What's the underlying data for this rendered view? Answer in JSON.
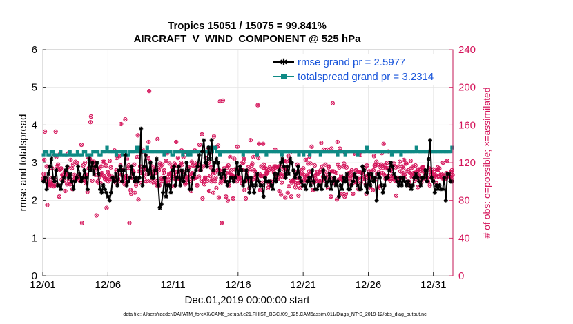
{
  "chart_data": {
    "type": "line",
    "title_line1": "Tropics 15051 / 15075 = 99.841%",
    "title_line2": "AIRCRAFT_V_WIND_COMPONENT @ 525 hPa",
    "xlabel": "Dec.01,2019 00:00:00 start",
    "ylabel": "rmse and totalspread",
    "ylabel_right": "# of obs: o=possible; ×=assimilated",
    "xlim": [
      0,
      31.5
    ],
    "ylim": [
      0,
      6
    ],
    "ylim_right": [
      0,
      240
    ],
    "x_ticks": [
      0,
      5,
      10,
      15,
      20,
      25,
      30
    ],
    "x_tick_labels": [
      "12/01",
      "12/06",
      "12/11",
      "12/16",
      "12/21",
      "12/26",
      "12/31"
    ],
    "y_ticks": [
      0,
      1,
      2,
      3,
      4,
      5,
      6
    ],
    "y_tick_labels": [
      "0",
      "1",
      "2",
      "3",
      "4",
      "5",
      "6"
    ],
    "y_ticks_right": [
      0,
      40,
      80,
      120,
      160,
      200,
      240
    ],
    "y_tick_labels_right": [
      "0",
      "40",
      "80",
      "120",
      "160",
      "200",
      "240"
    ],
    "colors": {
      "rmse": "#000000",
      "spread": "#0f8a85",
      "obs": "#d4145a"
    },
    "series": [
      {
        "name": "rmse grand pr = 2.5977",
        "key": "rmse",
        "values": [
          2.5,
          2.6,
          2.3,
          2.7,
          2.9,
          3.1,
          2.6,
          2.5,
          2.8,
          2.4,
          2.4,
          2.3,
          2.5,
          2.6,
          2.8,
          2.9,
          2.6,
          2.7,
          2.5,
          2.3,
          2.5,
          2.6,
          2.9,
          2.7,
          2.5,
          2.6,
          2.8,
          2.6,
          2.3,
          3.1,
          2.8,
          3.0,
          2.7,
          2.9,
          3.0,
          2.7,
          2.3,
          2.2,
          2.4,
          2.3,
          2.2,
          2.1,
          2.0,
          2.2,
          2.6,
          2.5,
          2.7,
          2.4,
          2.8,
          2.9,
          2.5,
          2.8,
          3.2,
          2.4,
          2.5,
          2.6,
          2.9,
          2.7,
          2.5,
          2.6,
          2.5,
          2.6,
          3.9,
          2.4,
          2.9,
          3.2,
          2.8,
          2.7,
          3.0,
          2.6,
          2.6,
          2.8,
          3.1,
          2.4,
          1.8,
          1.9,
          2.2,
          2.6,
          2.1,
          2.4,
          2.4,
          2.2,
          2.8,
          2.9,
          2.4,
          2.6,
          2.9,
          2.4,
          2.8,
          2.5,
          2.7,
          3.0,
          2.8,
          2.3,
          2.3,
          2.6,
          2.7,
          2.8,
          2.9,
          3.2,
          2.8,
          3.3,
          3.6,
          3.0,
          2.9,
          3.4,
          3.1,
          3.6,
          2.8,
          3.0,
          3.1,
          3.0,
          2.7,
          2.6,
          2.7,
          2.8,
          2.5,
          2.4,
          2.5,
          2.6,
          2.6,
          2.5,
          2.6,
          3.0,
          2.7,
          2.9,
          2.8,
          2.4,
          2.5,
          2.8,
          2.6,
          2.2,
          2.6,
          2.4,
          2.2,
          2.4,
          2.7,
          2.5,
          2.4,
          2.4,
          2.1,
          2.6,
          2.5,
          2.5,
          2.5,
          2.4,
          2.3,
          2.7,
          2.5,
          2.7,
          2.8,
          3.0,
          3.1,
          2.9,
          2.6,
          2.9,
          2.7,
          3.1,
          3.0,
          2.8,
          2.6,
          2.7,
          2.9,
          2.6,
          2.5,
          2.4,
          2.4,
          2.3,
          2.5,
          2.6,
          2.4,
          2.8,
          2.5,
          2.3,
          2.3,
          2.4,
          2.4,
          2.3,
          2.8,
          2.6,
          2.4,
          2.5,
          2.7,
          2.3,
          2.5,
          2.6,
          2.4,
          2.5,
          2.1,
          2.4,
          2.3,
          2.6,
          2.5,
          2.7,
          2.3,
          2.3,
          2.4,
          2.5,
          2.7,
          2.6,
          2.4,
          2.3,
          2.3,
          2.9,
          2.8,
          2.4,
          2.2,
          2.7,
          2.4,
          2.7,
          2.5,
          2.6,
          2.0,
          2.7,
          2.6,
          2.4,
          2.2,
          2.4,
          2.6,
          2.6,
          2.8,
          3.0,
          2.9,
          2.7,
          2.6,
          2.5,
          2.4,
          2.6,
          2.4,
          2.6,
          2.5,
          2.4,
          2.5,
          2.4,
          2.3,
          2.4,
          2.6,
          2.7,
          2.6,
          2.5,
          2.4,
          2.6,
          2.6,
          2.8,
          2.5,
          3.1,
          3.6,
          2.6,
          2.5,
          2.2,
          2.4,
          2.3,
          2.4,
          2.3,
          2.3,
          2.6,
          2.0,
          2.7,
          2.7,
          2.5,
          2.5
        ]
      },
      {
        "name": "totalspread grand pr = 3.2314",
        "key": "spread",
        "values": [
          3.2,
          3.3,
          3.3,
          3.2,
          3.2,
          3.3,
          3.3,
          3.2,
          3.2,
          3.2,
          3.2,
          3.3,
          3.2,
          3.2,
          3.2,
          3.2,
          3.2,
          3.3,
          3.2,
          3.2,
          3.2,
          3.2,
          3.3,
          3.2,
          3.2,
          3.2,
          3.3,
          3.3,
          3.2,
          3.2,
          3.2,
          3.2,
          3.3,
          3.3,
          3.3,
          3.3,
          3.2,
          3.2,
          3.3,
          3.3,
          3.3,
          3.4,
          3.3,
          3.3,
          3.3,
          3.3,
          3.3,
          3.2,
          3.3,
          3.3,
          3.3,
          3.2,
          3.3,
          3.3,
          3.2,
          3.2,
          3.3,
          3.3,
          3.3,
          3.3,
          3.4,
          3.3,
          3.4,
          3.3,
          3.3,
          3.3,
          3.3,
          3.4,
          3.3,
          3.3,
          3.3,
          3.3,
          3.3,
          3.3,
          3.3,
          3.3,
          3.3,
          3.3,
          3.2,
          3.3,
          3.3,
          3.3,
          3.3,
          3.2,
          3.2,
          3.3,
          3.3,
          3.3,
          3.3,
          3.3,
          3.2,
          3.3,
          3.3,
          3.2,
          3.3,
          3.2,
          3.3,
          3.3,
          3.3,
          3.3,
          3.3,
          3.3,
          3.3,
          3.3,
          3.3,
          3.3,
          3.3,
          3.4,
          3.3,
          3.3,
          3.4,
          3.4,
          3.3,
          3.3,
          3.2,
          3.3,
          3.3,
          3.3,
          3.3,
          3.3,
          3.3,
          3.3,
          3.3,
          3.3,
          3.3,
          3.3,
          3.3,
          3.3,
          3.3,
          3.2,
          3.3,
          3.3,
          3.3,
          3.3,
          3.3,
          3.3,
          3.3,
          3.3,
          3.2,
          3.3,
          3.3,
          3.3,
          3.3,
          3.3,
          3.2,
          3.3,
          3.3,
          3.3,
          3.3,
          3.3,
          3.3,
          3.3,
          3.3,
          3.3,
          3.2,
          3.3,
          3.3,
          3.3,
          3.3,
          3.3,
          3.3,
          3.3,
          3.3,
          3.3,
          3.3,
          3.2,
          3.3,
          3.3,
          3.2,
          3.3,
          3.3,
          3.3,
          3.2,
          3.3,
          3.3,
          3.3,
          3.3,
          3.3,
          3.3,
          3.2,
          3.3,
          3.3,
          3.3,
          3.3,
          3.3,
          3.3,
          3.3,
          3.3,
          3.3,
          3.3,
          3.2,
          3.3,
          3.3,
          3.3,
          3.3,
          3.2,
          3.3,
          3.3,
          3.3,
          3.3,
          3.3,
          3.3,
          3.3,
          3.2,
          3.3,
          3.3,
          3.3,
          3.3,
          3.3,
          3.4,
          3.3,
          3.3,
          3.3,
          3.3,
          3.3,
          3.3,
          3.3,
          3.3,
          3.3,
          3.3,
          3.3,
          3.3,
          3.3,
          3.3,
          3.3,
          3.2,
          3.3,
          3.3,
          3.3,
          3.3,
          3.3,
          3.2,
          3.3,
          3.3,
          3.3,
          3.3,
          3.3,
          3.3,
          3.3,
          3.3,
          3.3,
          3.4,
          3.3,
          3.3,
          3.3,
          3.3,
          3.3,
          3.3,
          3.3,
          3.3,
          3.3,
          3.3,
          3.3,
          3.3,
          3.3,
          3.3,
          3.3,
          3.3,
          3.3,
          3.3,
          3.3,
          3.3,
          3.3,
          3.3,
          3.4
        ]
      },
      {
        "name": "obs count",
        "key": "obs",
        "values": [
          103,
          108,
          123,
          153,
          100,
          103,
          116,
          75,
          100,
          98,
          95,
          97,
          97,
          103,
          98,
          114,
          98,
          95,
          95,
          128,
          102,
          153,
          126,
          116,
          97,
          118,
          112,
          84,
          129,
          113,
          114,
          102,
          107,
          106,
          106,
          101,
          110,
          90,
          108,
          107,
          97,
          115,
          130,
          101,
          107,
          97,
          123,
          98,
          114,
          92,
          118,
          102,
          107,
          103,
          121,
          102,
          120,
          104,
          105,
          106,
          107,
          101,
          104,
          101,
          139,
          56,
          103,
          117,
          102,
          101,
          120,
          98,
          107,
          107,
          89,
          126,
          114,
          115,
          124,
          163,
          169,
          122,
          101,
          114,
          115,
          121,
          119,
          107,
          113,
          64,
          114,
          100,
          99,
          104,
          114,
          108,
          98,
          116,
          109,
          107,
          121,
          106,
          121,
          103,
          102,
          117,
          72,
          104,
          110,
          100,
          107,
          122,
          102,
          115,
          103,
          105,
          104,
          104,
          102,
          133,
          103,
          99,
          112,
          125,
          111,
          103,
          100,
          127,
          108,
          117,
          161,
          107,
          100,
          112,
          104,
          101,
          97,
          166,
          105,
          106,
          124,
          103,
          114,
          117,
          56,
          104,
          91,
          87,
          104,
          112,
          108,
          110,
          118,
          88,
          100,
          96,
          102,
          126,
          149,
          81,
          111,
          132,
          116,
          98,
          109,
          113,
          134,
          112,
          131,
          105,
          112,
          115,
          100,
          108,
          101,
          125,
          142,
          196,
          121,
          109,
          100,
          108,
          116,
          111,
          106,
          98,
          112,
          101,
          114,
          109,
          96,
          145,
          114,
          112,
          96,
          119,
          116,
          103,
          100,
          118,
          103,
          109,
          112,
          103,
          102,
          122,
          99,
          130,
          99,
          105,
          108,
          119,
          102,
          109,
          109,
          115,
          115,
          106,
          95,
          119,
          103,
          117,
          142,
          110,
          107,
          125,
          103,
          116,
          103,
          111,
          120,
          133,
          118,
          104,
          126,
          131,
          110,
          97,
          102,
          99,
          104,
          106,
          114,
          115,
          105,
          101,
          108,
          90,
          121,
          109,
          117,
          103,
          104,
          133,
          117,
          104,
          120,
          96,
          116,
          118,
          105,
          139,
          112,
          112,
          101,
          150,
          82,
          116,
          100,
          97,
          104,
          125,
          104,
          118,
          101,
          134,
          120,
          90,
          130,
          106,
          115,
          100,
          102,
          110,
          88,
          148,
          109,
          100,
          104,
          93,
          137,
          112,
          138,
          83,
          112,
          185,
          98,
          101,
          56,
          111,
          186,
          104,
          114,
          100,
          105,
          84,
          109,
          115,
          80,
          117,
          96,
          109,
          126,
          107,
          112,
          107,
          104,
          82,
          104,
          124,
          113,
          105,
          106,
          100,
          137,
          106,
          106,
          103,
          104,
          113,
          102,
          119,
          98,
          112,
          120,
          124,
          91,
          100,
          82,
          102,
          108,
          103,
          115,
          103,
          93,
          112,
          144,
          100,
          117,
          119,
          102,
          126,
          112,
          111,
          104,
          107,
          103,
          107,
          181,
          125,
          140,
          108,
          91,
          106,
          116,
          106,
          99,
          140,
          118,
          114,
          105,
          114,
          108,
          110,
          109,
          93,
          112,
          97,
          115,
          99,
          98,
          95,
          101,
          113,
          114,
          110,
          116,
          134,
          116,
          107,
          114,
          104,
          103,
          116,
          90,
          108,
          116,
          86,
          99,
          105,
          107,
          113,
          122,
          115,
          83,
          112,
          121,
          114,
          88,
          127,
          95,
          122,
          131,
          101,
          84,
          99,
          100,
          100,
          102,
          111,
          107,
          94,
          98,
          104,
          118,
          98,
          85,
          110,
          101,
          93,
          98,
          112,
          108,
          100,
          114,
          107,
          102,
          104,
          123,
          101,
          106,
          107,
          119,
          126,
          111,
          104,
          119,
          110,
          137,
          100,
          91,
          106,
          99,
          117,
          103,
          107,
          101,
          110,
          108,
          101,
          101,
          110,
          99,
          112,
          141,
          101,
          116,
          105,
          134,
          111,
          101,
          118,
          104,
          107,
          134,
          93,
          115,
          116,
          110,
          104,
          84,
          135,
          111,
          183,
          111,
          103,
          110,
          100,
          97,
          109,
          81,
          142,
          118,
          102,
          115,
          135,
          103,
          106,
          103,
          87,
          101,
          116,
          119,
          84,
          130,
          87,
          115,
          104,
          108,
          106,
          109,
          97,
          102,
          106,
          110,
          112,
          105,
          87,
          100,
          106,
          98,
          129,
          112,
          104,
          100,
          110,
          92,
          104,
          110,
          128,
          99,
          109,
          109,
          103,
          115,
          106,
          114,
          102,
          97,
          87,
          117,
          104,
          107,
          106,
          111,
          97,
          93,
          107,
          110,
          104,
          91,
          112,
          127,
          117,
          117,
          102,
          121,
          108,
          118,
          93,
          110,
          108,
          95,
          115,
          118,
          130,
          109,
          115,
          140,
          107,
          117,
          103,
          114,
          106,
          120,
          114,
          132,
          103,
          113,
          101,
          106,
          111,
          112,
          106,
          103,
          119,
          102,
          101,
          115,
          85,
          104,
          100,
          103,
          116,
          102,
          121,
          111,
          104,
          104,
          116,
          109,
          114,
          123,
          107,
          105,
          119,
          119,
          111,
          100,
          112,
          100,
          96,
          109,
          122,
          114,
          105,
          106,
          116,
          109,
          108,
          101,
          117,
          102,
          111,
          110,
          94,
          113,
          107,
          113,
          103,
          112,
          99,
          111,
          115,
          115,
          103,
          111,
          108,
          110,
          108,
          104,
          104,
          100,
          113,
          114,
          96,
          105,
          110,
          107,
          110,
          102,
          113,
          108,
          106,
          107,
          99,
          105,
          112,
          115,
          112,
          106,
          114,
          105,
          107,
          108,
          106,
          104,
          120,
          102,
          107,
          104,
          103,
          103,
          109,
          122,
          106,
          105,
          107,
          108,
          105,
          110,
          103,
          112,
          107
        ]
      }
    ],
    "footer": "data file: /Users/raeder/DAI/ATM_forcXX/CAM6_setup/f.e21.FHIST_BGC.f09_025.CAM6assim.011/Diags_NTrS_2019-12/obs_diag_output.nc"
  }
}
